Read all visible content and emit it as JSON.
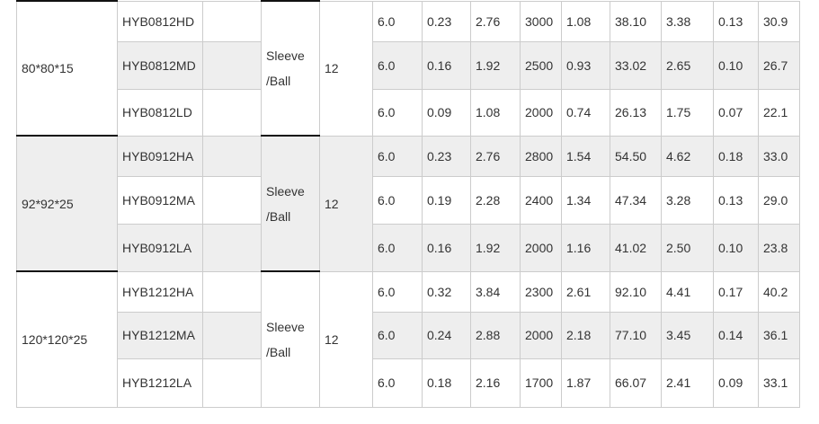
{
  "groups": [
    {
      "size": "80*80*15",
      "bearing_line1": "Sleeve",
      "bearing_line2": "/Ball",
      "voltage": "12",
      "rows": [
        {
          "model": "HYB0812HD",
          "values": [
            "6.0",
            "0.23",
            "2.76",
            "3000",
            "1.08",
            "38.10",
            "3.38",
            "0.13",
            "30.9"
          ]
        },
        {
          "model": "HYB0812MD",
          "values": [
            "6.0",
            "0.16",
            "1.92",
            "2500",
            "0.93",
            "33.02",
            "2.65",
            "0.10",
            "26.7"
          ]
        },
        {
          "model": "HYB0812LD",
          "values": [
            "6.0",
            "0.09",
            "1.08",
            "2000",
            "0.74",
            "26.13",
            "1.75",
            "0.07",
            "22.1"
          ]
        }
      ]
    },
    {
      "size": "92*92*25",
      "bearing_line1": "Sleeve",
      "bearing_line2": "/Ball",
      "voltage": "12",
      "rows": [
        {
          "model": "HYB0912HA",
          "values": [
            "6.0",
            "0.23",
            "2.76",
            "2800",
            "1.54",
            "54.50",
            "4.62",
            "0.18",
            "33.0"
          ]
        },
        {
          "model": "HYB0912MA",
          "values": [
            "6.0",
            "0.19",
            "2.28",
            "2400",
            "1.34",
            "47.34",
            "3.28",
            "0.13",
            "29.0"
          ]
        },
        {
          "model": "HYB0912LA",
          "values": [
            "6.0",
            "0.16",
            "1.92",
            "2000",
            "1.16",
            "41.02",
            "2.50",
            "0.10",
            "23.8"
          ]
        }
      ]
    },
    {
      "size": "120*120*25",
      "bearing_line1": "Sleeve",
      "bearing_line2": "/Ball",
      "voltage": "12",
      "rows": [
        {
          "model": "HYB1212HA",
          "values": [
            "6.0",
            "0.32",
            "3.84",
            "2300",
            "2.61",
            "92.10",
            "4.41",
            "0.17",
            "40.2"
          ]
        },
        {
          "model": "HYB1212MA",
          "values": [
            "6.0",
            "0.24",
            "2.88",
            "2000",
            "2.18",
            "77.10",
            "3.45",
            "0.14",
            "36.1"
          ]
        },
        {
          "model": "HYB1212LA",
          "values": [
            "6.0",
            "0.18",
            "2.16",
            "1700",
            "1.87",
            "66.07",
            "2.41",
            "0.09",
            "33.1"
          ]
        }
      ]
    }
  ],
  "colors": {
    "stripe": "#eeeeee",
    "border": "#cccccc",
    "group_border": "#111111",
    "text": "#333333"
  }
}
